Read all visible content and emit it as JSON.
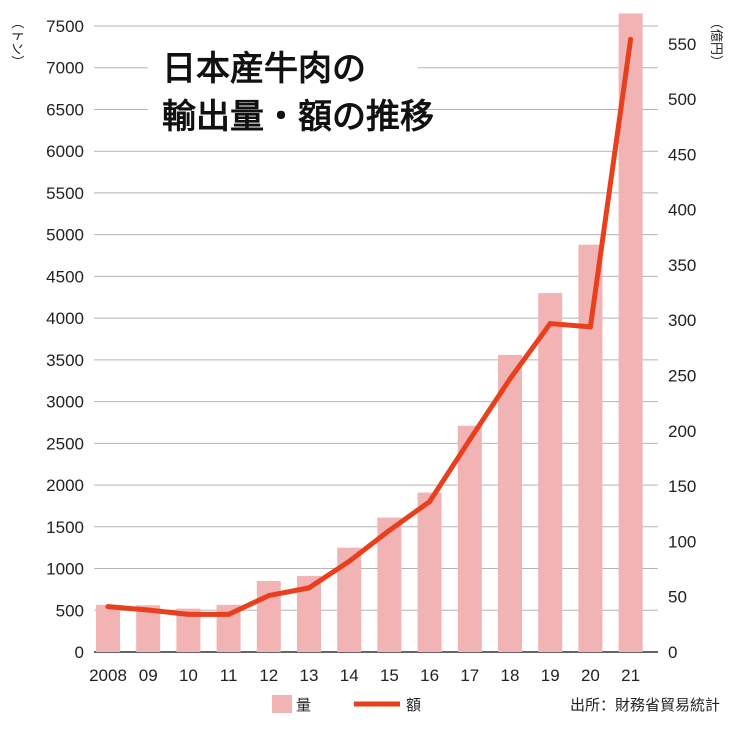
{
  "chart_data": {
    "type": "bar",
    "title_lines": [
      "日本産牛肉の",
      "輸出量・額の推移"
    ],
    "categories": [
      "2008",
      "09",
      "10",
      "11",
      "12",
      "13",
      "14",
      "15",
      "16",
      "17",
      "18",
      "19",
      "20",
      "21"
    ],
    "left_unit": "（トン）",
    "right_unit": "（億円）",
    "left_axis": {
      "ylim": [
        0,
        7500
      ],
      "ticks": [
        0,
        500,
        1000,
        1500,
        2000,
        2500,
        3000,
        3500,
        4000,
        4500,
        5000,
        5500,
        6000,
        6500,
        7000,
        7500
      ]
    },
    "right_axis": {
      "ylim": [
        0,
        580
      ],
      "ticks": [
        0,
        50,
        100,
        150,
        200,
        250,
        300,
        350,
        400,
        450,
        500,
        550
      ]
    },
    "series": [
      {
        "name": "量",
        "kind": "bar",
        "axis": "left",
        "color": "#f2b3b5",
        "values": [
          565,
          560,
          520,
          565,
          850,
          910,
          1250,
          1610,
          1910,
          2710,
          3560,
          4300,
          4880,
          7650
        ]
      },
      {
        "name": "額",
        "kind": "line",
        "axis": "right",
        "color": "#e8401c",
        "values": [
          41,
          38,
          34,
          34,
          51,
          58,
          82,
          110,
          136,
          192,
          247,
          297,
          294,
          554
        ]
      }
    ],
    "grid": true,
    "legend": "bottom",
    "source": "出所：財務省貿易統計"
  }
}
